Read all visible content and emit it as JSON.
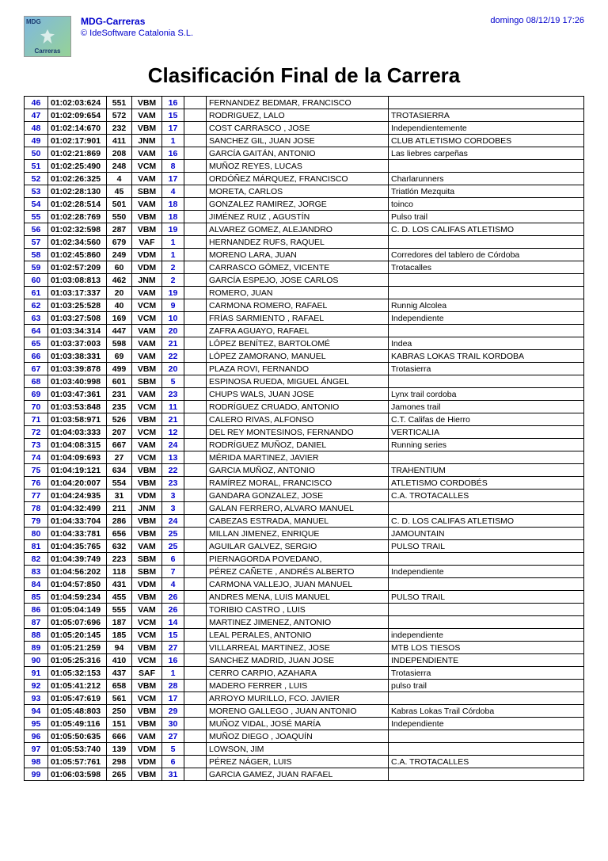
{
  "header": {
    "brand": "MDG-Carreras",
    "copyright": "© IdeSoftware Catalonia S.L.",
    "timestamp": "domingo 08/12/19 17:26",
    "logo_top": "MDG",
    "logo_bottom": "Carreras"
  },
  "title": "Clasificación Final de la Carrera",
  "colors": {
    "link_blue": "#0000cc",
    "border": "#000000",
    "background": "#ffffff"
  },
  "columns": [
    "pos",
    "time",
    "bib",
    "cat",
    "cpos",
    "gap",
    "name",
    "club"
  ],
  "rows": [
    {
      "pos": "46",
      "time": "01:02:03:624",
      "bib": "551",
      "cat": "VBM",
      "cpos": "16",
      "name": "FERNANDEZ BEDMAR, FRANCISCO",
      "club": ""
    },
    {
      "pos": "47",
      "time": "01:02:09:654",
      "bib": "572",
      "cat": "VAM",
      "cpos": "15",
      "name": "RODRIGUEZ, LALO",
      "club": "TROTASIERRA"
    },
    {
      "pos": "48",
      "time": "01:02:14:670",
      "bib": "232",
      "cat": "VBM",
      "cpos": "17",
      "name": "COST CARRASCO , JOSE",
      "club": "Independientemente"
    },
    {
      "pos": "49",
      "time": "01:02:17:901",
      "bib": "411",
      "cat": "JNM",
      "cpos": "1",
      "name": "SANCHEZ GIL, JUAN JOSE",
      "club": "CLUB ATLETISMO CORDOBES"
    },
    {
      "pos": "50",
      "time": "01:02:21:869",
      "bib": "208",
      "cat": "VAM",
      "cpos": "16",
      "name": "GARCÍA GAITÁN, ANTONIO",
      "club": "Las liebres carpeñas"
    },
    {
      "pos": "51",
      "time": "01:02:25:490",
      "bib": "248",
      "cat": "VCM",
      "cpos": "8",
      "name": "MUÑOZ REYES, LUCAS",
      "club": ""
    },
    {
      "pos": "52",
      "time": "01:02:26:325",
      "bib": "4",
      "cat": "VAM",
      "cpos": "17",
      "name": "ORDÓÑEZ MÁRQUEZ, FRANCISCO",
      "club": "Charlarunners"
    },
    {
      "pos": "53",
      "time": "01:02:28:130",
      "bib": "45",
      "cat": "SBM",
      "cpos": "4",
      "name": "MORETA, CARLOS",
      "club": "Triatlón Mezquita"
    },
    {
      "pos": "54",
      "time": "01:02:28:514",
      "bib": "501",
      "cat": "VAM",
      "cpos": "18",
      "name": "GONZALEZ RAMIREZ, JORGE",
      "club": "toinco"
    },
    {
      "pos": "55",
      "time": "01:02:28:769",
      "bib": "550",
      "cat": "VBM",
      "cpos": "18",
      "name": "JIMÉNEZ RUIZ , AGUSTÍN",
      "club": "Pulso trail"
    },
    {
      "pos": "56",
      "time": "01:02:32:598",
      "bib": "287",
      "cat": "VBM",
      "cpos": "19",
      "name": "ALVAREZ GOMEZ, ALEJANDRO",
      "club": "C. D. LOS CALIFAS ATLETISMO"
    },
    {
      "pos": "57",
      "time": "01:02:34:560",
      "bib": "679",
      "cat": "VAF",
      "cpos": "1",
      "name": "HERNANDEZ RUFS, RAQUEL",
      "club": ""
    },
    {
      "pos": "58",
      "time": "01:02:45:860",
      "bib": "249",
      "cat": "VDM",
      "cpos": "1",
      "name": "MORENO LARA, JUAN",
      "club": "Corredores del tablero de Córdoba"
    },
    {
      "pos": "59",
      "time": "01:02:57:209",
      "bib": "60",
      "cat": "VDM",
      "cpos": "2",
      "name": "CARRASCO GÓMEZ, VICENTE",
      "club": "Trotacalles"
    },
    {
      "pos": "60",
      "time": "01:03:08:813",
      "bib": "462",
      "cat": "JNM",
      "cpos": "2",
      "name": "GARCÍA ESPEJO, JOSE CARLOS",
      "club": ""
    },
    {
      "pos": "61",
      "time": "01:03:17:337",
      "bib": "20",
      "cat": "VAM",
      "cpos": "19",
      "name": "ROMERO, JUAN",
      "club": ""
    },
    {
      "pos": "62",
      "time": "01:03:25:528",
      "bib": "40",
      "cat": "VCM",
      "cpos": "9",
      "name": "CARMONA ROMERO, RAFAEL",
      "club": "Runnig Alcolea"
    },
    {
      "pos": "63",
      "time": "01:03:27:508",
      "bib": "169",
      "cat": "VCM",
      "cpos": "10",
      "name": "FRÍAS SARMIENTO , RAFAEL",
      "club": "Independiente"
    },
    {
      "pos": "64",
      "time": "01:03:34:314",
      "bib": "447",
      "cat": "VAM",
      "cpos": "20",
      "name": "ZAFRA AGUAYO, RAFAEL",
      "club": ""
    },
    {
      "pos": "65",
      "time": "01:03:37:003",
      "bib": "598",
      "cat": "VAM",
      "cpos": "21",
      "name": "LÓPEZ BENÍTEZ, BARTOLOMÉ",
      "club": "Indea"
    },
    {
      "pos": "66",
      "time": "01:03:38:331",
      "bib": "69",
      "cat": "VAM",
      "cpos": "22",
      "name": "LÓPEZ ZAMORANO, MANUEL",
      "club": "KABRAS LOKAS TRAIL KORDOBA"
    },
    {
      "pos": "67",
      "time": "01:03:39:878",
      "bib": "499",
      "cat": "VBM",
      "cpos": "20",
      "name": "PLAZA ROVI, FERNANDO",
      "club": "Trotasierra"
    },
    {
      "pos": "68",
      "time": "01:03:40:998",
      "bib": "601",
      "cat": "SBM",
      "cpos": "5",
      "name": "ESPINOSA RUEDA, MIGUEL ÁNGEL",
      "club": ""
    },
    {
      "pos": "69",
      "time": "01:03:47:361",
      "bib": "231",
      "cat": "VAM",
      "cpos": "23",
      "name": "CHUPS WALS, JUAN JOSE",
      "club": "Lynx trail cordoba"
    },
    {
      "pos": "70",
      "time": "01:03:53:848",
      "bib": "235",
      "cat": "VCM",
      "cpos": "11",
      "name": "RODRÍGUEZ CRUADO, ANTONIO",
      "club": "Jamones trail"
    },
    {
      "pos": "71",
      "time": "01:03:58:971",
      "bib": "526",
      "cat": "VBM",
      "cpos": "21",
      "name": "CALERO RIVAS, ALFONSO",
      "club": "C.T. Califas de Hierro"
    },
    {
      "pos": "72",
      "time": "01:04:03:333",
      "bib": "207",
      "cat": "VCM",
      "cpos": "12",
      "name": "DEL REY MONTESINOS, FERNANDO",
      "club": "VERTICALIA"
    },
    {
      "pos": "73",
      "time": "01:04:08:315",
      "bib": "667",
      "cat": "VAM",
      "cpos": "24",
      "name": "RODRÍGUEZ MUÑOZ, DANIEL",
      "club": "Running series"
    },
    {
      "pos": "74",
      "time": "01:04:09:693",
      "bib": "27",
      "cat": "VCM",
      "cpos": "13",
      "name": "MÉRIDA MARTINEZ, JAVIER",
      "club": ""
    },
    {
      "pos": "75",
      "time": "01:04:19:121",
      "bib": "634",
      "cat": "VBM",
      "cpos": "22",
      "name": "GARCIA MUÑOZ, ANTONIO",
      "club": "TRAHENTIUM"
    },
    {
      "pos": "76",
      "time": "01:04:20:007",
      "bib": "554",
      "cat": "VBM",
      "cpos": "23",
      "name": "RAMÍREZ MORAL, FRANCISCO",
      "club": "ATLETISMO CORDOBÉS"
    },
    {
      "pos": "77",
      "time": "01:04:24:935",
      "bib": "31",
      "cat": "VDM",
      "cpos": "3",
      "name": "GANDARA GONZALEZ, JOSE",
      "club": "C.A. TROTACALLES"
    },
    {
      "pos": "78",
      "time": "01:04:32:499",
      "bib": "211",
      "cat": "JNM",
      "cpos": "3",
      "name": "GALAN FERRERO, ALVARO MANUEL",
      "club": ""
    },
    {
      "pos": "79",
      "time": "01:04:33:704",
      "bib": "286",
      "cat": "VBM",
      "cpos": "24",
      "name": "CABEZAS ESTRADA, MANUEL",
      "club": "C. D. LOS CALIFAS ATLETISMO"
    },
    {
      "pos": "80",
      "time": "01:04:33:781",
      "bib": "656",
      "cat": "VBM",
      "cpos": "25",
      "name": "MILLAN JIMENEZ, ENRIQUE",
      "club": "JAMOUNTAIN"
    },
    {
      "pos": "81",
      "time": "01:04:35:765",
      "bib": "632",
      "cat": "VAM",
      "cpos": "25",
      "name": "AGUILAR GALVEZ, SERGIO",
      "club": "PULSO TRAIL"
    },
    {
      "pos": "82",
      "time": "01:04:39:749",
      "bib": "223",
      "cat": "SBM",
      "cpos": "6",
      "name": "PIERNAGORDA POVEDANO,",
      "club": ""
    },
    {
      "pos": "83",
      "time": "01:04:56:202",
      "bib": "118",
      "cat": "SBM",
      "cpos": "7",
      "name": "PÉREZ CAÑETE , ANDRÉS ALBERTO",
      "club": "Independiente"
    },
    {
      "pos": "84",
      "time": "01:04:57:850",
      "bib": "431",
      "cat": "VDM",
      "cpos": "4",
      "name": "CARMONA VALLEJO, JUAN MANUEL",
      "club": ""
    },
    {
      "pos": "85",
      "time": "01:04:59:234",
      "bib": "455",
      "cat": "VBM",
      "cpos": "26",
      "name": "ANDRES MENA, LUIS MANUEL",
      "club": "PULSO TRAIL"
    },
    {
      "pos": "86",
      "time": "01:05:04:149",
      "bib": "555",
      "cat": "VAM",
      "cpos": "26",
      "name": "TORIBIO CASTRO , LUIS",
      "club": ""
    },
    {
      "pos": "87",
      "time": "01:05:07:696",
      "bib": "187",
      "cat": "VCM",
      "cpos": "14",
      "name": "MARTINEZ JIMENEZ, ANTONIO",
      "club": ""
    },
    {
      "pos": "88",
      "time": "01:05:20:145",
      "bib": "185",
      "cat": "VCM",
      "cpos": "15",
      "name": "LEAL PERALES, ANTONIO",
      "club": "independiente"
    },
    {
      "pos": "89",
      "time": "01:05:21:259",
      "bib": "94",
      "cat": "VBM",
      "cpos": "27",
      "name": "VILLARREAL MARTINEZ, JOSE",
      "club": "MTB LOS TIESOS"
    },
    {
      "pos": "90",
      "time": "01:05:25:316",
      "bib": "410",
      "cat": "VCM",
      "cpos": "16",
      "name": "SANCHEZ MADRID, JUAN JOSE",
      "club": "INDEPENDIENTE"
    },
    {
      "pos": "91",
      "time": "01:05:32:153",
      "bib": "437",
      "cat": "SAF",
      "cpos": "1",
      "name": "CERRO CARPIO, AZAHARA",
      "club": "Trotasierra"
    },
    {
      "pos": "92",
      "time": "01:05:41:212",
      "bib": "658",
      "cat": "VBM",
      "cpos": "28",
      "name": "MADERO FERRER , LUIS",
      "club": "pulso trail"
    },
    {
      "pos": "93",
      "time": "01:05:47:619",
      "bib": "561",
      "cat": "VCM",
      "cpos": "17",
      "name": "ARROYO MURILLO, FCO. JAVIER",
      "club": ""
    },
    {
      "pos": "94",
      "time": "01:05:48:803",
      "bib": "250",
      "cat": "VBM",
      "cpos": "29",
      "name": "MORENO GALLEGO , JUAN ANTONIO",
      "club": "Kabras Lokas Trail Córdoba"
    },
    {
      "pos": "95",
      "time": "01:05:49:116",
      "bib": "151",
      "cat": "VBM",
      "cpos": "30",
      "name": "MUÑOZ VIDAL, JOSÉ MARÍA",
      "club": "Independiente"
    },
    {
      "pos": "96",
      "time": "01:05:50:635",
      "bib": "666",
      "cat": "VAM",
      "cpos": "27",
      "name": "MUÑOZ DIEGO , JOAQUÍN",
      "club": ""
    },
    {
      "pos": "97",
      "time": "01:05:53:740",
      "bib": "139",
      "cat": "VDM",
      "cpos": "5",
      "name": "LOWSON, JIM",
      "club": ""
    },
    {
      "pos": "98",
      "time": "01:05:57:761",
      "bib": "298",
      "cat": "VDM",
      "cpos": "6",
      "name": "PÉREZ NÁGER, LUIS",
      "club": "C.A. TROTACALLES"
    },
    {
      "pos": "99",
      "time": "01:06:03:598",
      "bib": "265",
      "cat": "VBM",
      "cpos": "31",
      "name": "GARCIA GAMEZ, JUAN RAFAEL",
      "club": ""
    }
  ]
}
